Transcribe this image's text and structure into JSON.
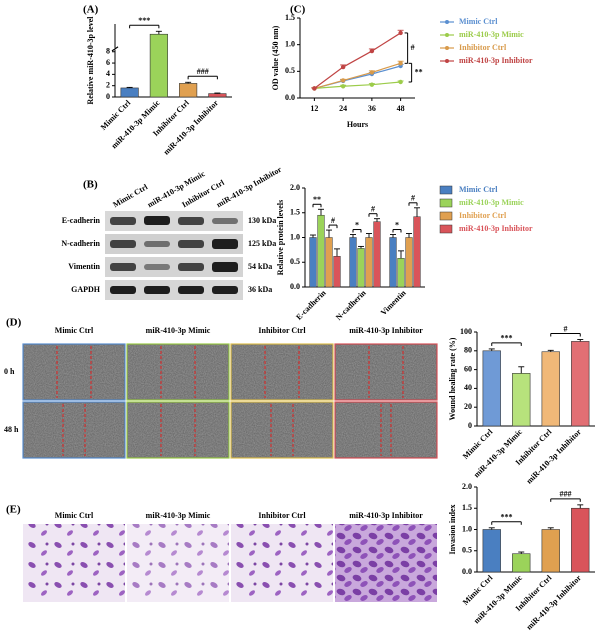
{
  "figure": {
    "panel_labels": [
      "(A)",
      "(B)",
      "(C)",
      "(D)",
      "(E)"
    ]
  },
  "blot": {
    "lanes": [
      "Mimic Ctrl",
      "miR-410-3p Mimic",
      "Inhibitor Ctrl",
      "miR-410-3p Inhibitor"
    ],
    "proteins": [
      {
        "name": "E-cadherin",
        "size": "130 kDa"
      },
      {
        "name": "N-cadherin",
        "size": "125 kDa"
      },
      {
        "name": "Vimentin",
        "size": "54 kDa"
      },
      {
        "name": "GAPDH",
        "size": "36 kDa"
      }
    ]
  },
  "wound_images": {
    "columns": [
      "Mimic Ctrl",
      "miR-410-3p Mimic",
      "Inhibitor Ctrl",
      "miR-410-3p Inhibitor"
    ],
    "rows": [
      "0 h",
      "48 h"
    ]
  },
  "invasion_images": {
    "columns": [
      "Mimic Ctrl",
      "miR-410-3p Mimic",
      "Inhibitor Ctrl",
      "miR-410-3p Inhibitor"
    ]
  },
  "chart_data": [
    {
      "type": "bar",
      "categories": [
        "Mimic Ctrl",
        "miR-410-3p Mimic",
        "Inhibitor Ctrl",
        "miR-410-3p Inhibitor"
      ],
      "values": [
        1.6,
        168,
        2.4,
        0.6
      ],
      "errors": [
        0.1,
        2,
        0.2,
        0.1
      ],
      "colors": [
        "#4a7fc1",
        "#9bd35a",
        "#e0a050",
        "#d9545a"
      ],
      "ylabel": "Relative miR-410-3p level",
      "ylim": [
        0,
        175
      ],
      "ybreak": [
        8,
        160
      ],
      "yticks": [
        0,
        2,
        4,
        6,
        8
      ],
      "annotations": [
        "***",
        "###"
      ]
    },
    {
      "type": "line",
      "x": [
        12,
        24,
        36,
        48
      ],
      "xlim": [
        6,
        54
      ],
      "xticks": [
        12,
        24,
        36,
        48
      ],
      "ylim": [
        0,
        1.5
      ],
      "yticks": [
        {
          "value": 0,
          "label": "0.0"
        },
        {
          "value": 0.5,
          "label": "0.5"
        },
        {
          "value": 1,
          "label": "1.0"
        },
        {
          "value": 1.5,
          "label": "1.5"
        }
      ],
      "xlabel": "Hours",
      "ylabel": "OD value (450 nm)",
      "legend": "right",
      "series": [
        {
          "name": "Mimic Ctrl",
          "color": "#5b8fd0",
          "values": [
            0.18,
            0.32,
            0.45,
            0.6
          ],
          "errors": [
            0.01,
            0.02,
            0.03,
            0.03
          ]
        },
        {
          "name": "miR-410-3p Mimic",
          "color": "#9ccc4a",
          "values": [
            0.18,
            0.22,
            0.25,
            0.3
          ],
          "errors": [
            0.01,
            0.02,
            0.02,
            0.02
          ]
        },
        {
          "name": "Inhibitor Ctrl",
          "color": "#d89a4a",
          "values": [
            0.18,
            0.33,
            0.48,
            0.65
          ],
          "errors": [
            0.01,
            0.02,
            0.03,
            0.04
          ]
        },
        {
          "name": "miR-410-3p Inhibitor",
          "color": "#c04444",
          "values": [
            0.18,
            0.58,
            0.88,
            1.22
          ],
          "errors": [
            0.01,
            0.04,
            0.04,
            0.05
          ]
        }
      ],
      "annotations": [
        "#",
        "**"
      ]
    },
    {
      "type": "grouped_bar",
      "categories": [
        "E-cadherin",
        "N-cadherin",
        "Vimentin"
      ],
      "series": [
        {
          "name": "Mimic Ctrl",
          "color": "#4a7fc1",
          "values": [
            1.0,
            1.0,
            1.0
          ],
          "errors": [
            0.05,
            0.06,
            0.06
          ]
        },
        {
          "name": "miR-410-3p Mimic",
          "color": "#9bd35a",
          "values": [
            1.45,
            0.78,
            0.58
          ],
          "errors": [
            0.12,
            0.04,
            0.15
          ]
        },
        {
          "name": "Inhibitor Ctrl",
          "color": "#e0a050",
          "values": [
            1.0,
            1.0,
            1.0
          ],
          "errors": [
            0.15,
            0.08,
            0.08
          ]
        },
        {
          "name": "miR-410-3p Inhibitor",
          "color": "#d9545a",
          "values": [
            0.62,
            1.32,
            1.42
          ],
          "errors": [
            0.15,
            0.06,
            0.18
          ]
        }
      ],
      "ylim": [
        0,
        2
      ],
      "yticks": [
        {
          "value": 0,
          "label": "0.0"
        },
        {
          "value": 0.5,
          "label": "0.5"
        },
        {
          "value": 1,
          "label": "1.0"
        },
        {
          "value": 1.5,
          "label": "1.5"
        },
        {
          "value": 2,
          "label": "2.0"
        }
      ],
      "ylabel": "Relative protein levels",
      "legend": "right",
      "annotations": [
        "**",
        "#",
        "*",
        "#",
        "*",
        "#"
      ]
    },
    {
      "type": "bar",
      "categories": [
        "Mimic Ctrl",
        "miR-410-3p Mimic",
        "Inhibitor Ctrl",
        "miR-410-3p Inhibitor"
      ],
      "values": [
        80,
        56,
        79,
        90
      ],
      "errors": [
        2,
        7,
        1.5,
        2
      ],
      "colors": [
        "#6f9ad6",
        "#b7e27c",
        "#f0b878",
        "#e26f74"
      ],
      "ylabel": "Wound healing rate (%)",
      "ylim": [
        0,
        100
      ],
      "yticks": [
        0,
        20,
        40,
        60,
        80,
        100
      ],
      "annotations": [
        "***",
        "#"
      ]
    },
    {
      "type": "bar",
      "categories": [
        "Mimic Ctrl",
        "miR-410-3p Mimic",
        "Inhibitor Ctrl",
        "miR-410-3p Inhibitor"
      ],
      "values": [
        1.0,
        0.43,
        1.0,
        1.5
      ],
      "errors": [
        0.04,
        0.04,
        0.04,
        0.08
      ],
      "colors": [
        "#4a7fc1",
        "#9bd35a",
        "#e0a050",
        "#d9545a"
      ],
      "ylabel": "Invasion index",
      "ylim": [
        0,
        2
      ],
      "yticks": [
        {
          "value": 0,
          "label": "0.0"
        },
        {
          "value": 0.5,
          "label": "0.5"
        },
        {
          "value": 1,
          "label": "1.0"
        },
        {
          "value": 1.5,
          "label": "1.5"
        },
        {
          "value": 2,
          "label": "2.0"
        }
      ],
      "annotations": [
        "***",
        "###"
      ]
    }
  ]
}
